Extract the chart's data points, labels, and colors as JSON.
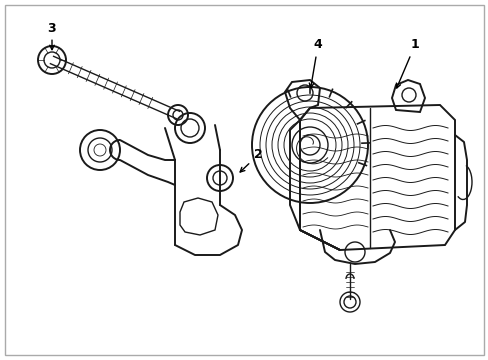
{
  "background_color": "#ffffff",
  "line_color": "#1a1a1a",
  "label_color": "#000000",
  "arrow_color": "#000000",
  "figsize": [
    4.89,
    3.6
  ],
  "dpi": 100,
  "border_color": "#999999",
  "lw_main": 1.0,
  "lw_thick": 1.4,
  "lw_thin": 0.6
}
